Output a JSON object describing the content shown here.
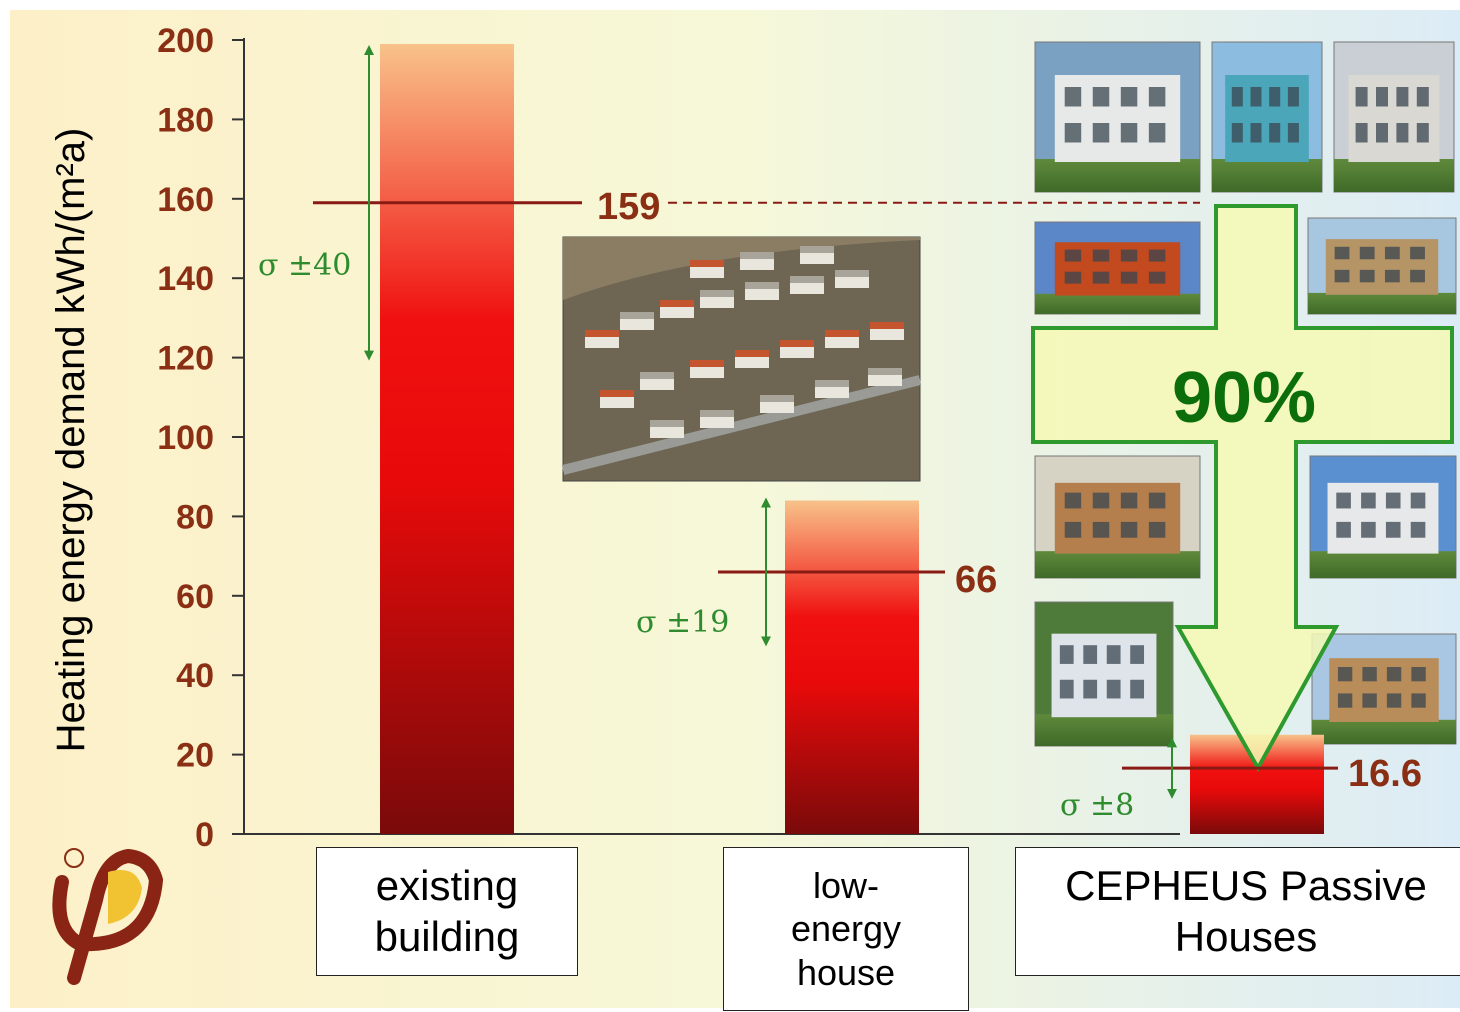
{
  "chart_data": {
    "type": "bar",
    "ylabel": "Heating energy demand kWh/(m²a)",
    "ylim": [
      0,
      200
    ],
    "yticks": [
      0,
      20,
      40,
      60,
      80,
      100,
      120,
      140,
      160,
      180,
      200
    ],
    "categories": [
      "existing building",
      "low-energy house",
      "CEPHEUS Passive Houses"
    ],
    "category_lines": [
      [
        "existing",
        "building"
      ],
      [
        "low-",
        "energy",
        "house"
      ],
      [
        "CEPHEUS Passive",
        "Houses"
      ]
    ],
    "bar_tops": [
      199,
      84,
      25
    ],
    "means": [
      159,
      66,
      16.6
    ],
    "mean_labels": [
      "159",
      "66",
      "16.6"
    ],
    "deviations": [
      40,
      19,
      8
    ],
    "deviation_labels": [
      "σ ±40",
      "σ ±19",
      "σ ±8"
    ],
    "reduction_label": "90%",
    "grid": false,
    "colors": {
      "bar_top": "#f8c28a",
      "bar_mid": "#f01010",
      "bar_bottom": "#7a0a0a",
      "mean_line": "#8a1a14",
      "value_text": "#8a2f14",
      "sigma": "#2e8b2e",
      "arrow_fill": "#f6f9b4",
      "arrow_stroke": "#2e9a2e",
      "percent_text": "#0b6e0b"
    }
  },
  "photos": [
    "aerial-settlement-photo",
    "passive-house-photo"
  ]
}
